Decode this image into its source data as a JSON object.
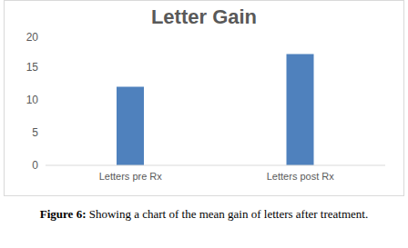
{
  "chart_data": {
    "type": "bar",
    "title": "Letter Gain",
    "categories": [
      "Letters pre Rx",
      "Letters post Rx"
    ],
    "values": [
      12,
      17
    ],
    "color": "#4f81bd",
    "ylim": [
      0,
      20
    ],
    "yticks": [
      0,
      5,
      10,
      15,
      20
    ],
    "grid": false,
    "caption": "Figure 6: Showing a chart of the mean gain of letters after treatment."
  }
}
